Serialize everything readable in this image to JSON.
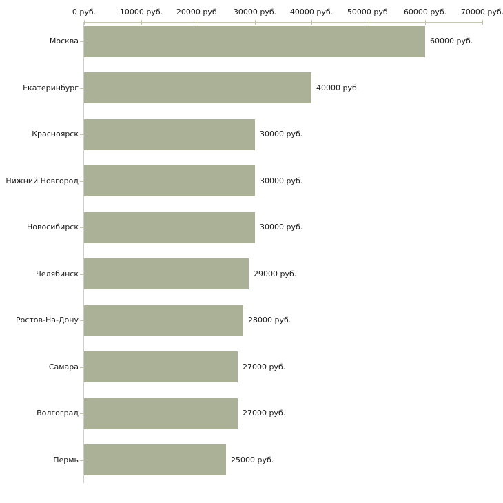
{
  "chart_data": {
    "type": "bar",
    "orientation": "horizontal",
    "title": "",
    "xlabel": "",
    "ylabel": "",
    "grid": "off",
    "legend": "none",
    "axis_position": "top",
    "categories": [
      "Москва",
      "Екатеринбург",
      "Красноярск",
      "Нижний Новгород",
      "Новосибирск",
      "Челябинск",
      "Ростов-На-Дону",
      "Самара",
      "Волгоград",
      "Пермь"
    ],
    "values": [
      60000,
      40000,
      30000,
      30000,
      30000,
      29000,
      28000,
      27000,
      27000,
      25000
    ],
    "value_labels": [
      "60000 руб.",
      "40000 руб.",
      "30000 руб.",
      "30000 руб.",
      "30000 руб.",
      "29000 руб.",
      "28000 руб.",
      "27000 руб.",
      "27000 руб.",
      "25000 руб."
    ],
    "x_axis": {
      "range": [
        0,
        70000
      ],
      "ticks": [
        0,
        10000,
        20000,
        30000,
        40000,
        50000,
        60000,
        70000
      ],
      "tick_labels": [
        "0 руб.",
        "10000 руб.",
        "20000 руб.",
        "30000 руб.",
        "40000 руб.",
        "50000 руб.",
        "60000 руб.",
        "70000 руб."
      ]
    },
    "colors": {
      "bar": "#abb196",
      "axis_top_line": "#c8c8ae",
      "axis_left_line": "#cccccc",
      "tick": "#c6c6a2",
      "text": "#1a1a1a",
      "background": "#ffffff"
    }
  }
}
